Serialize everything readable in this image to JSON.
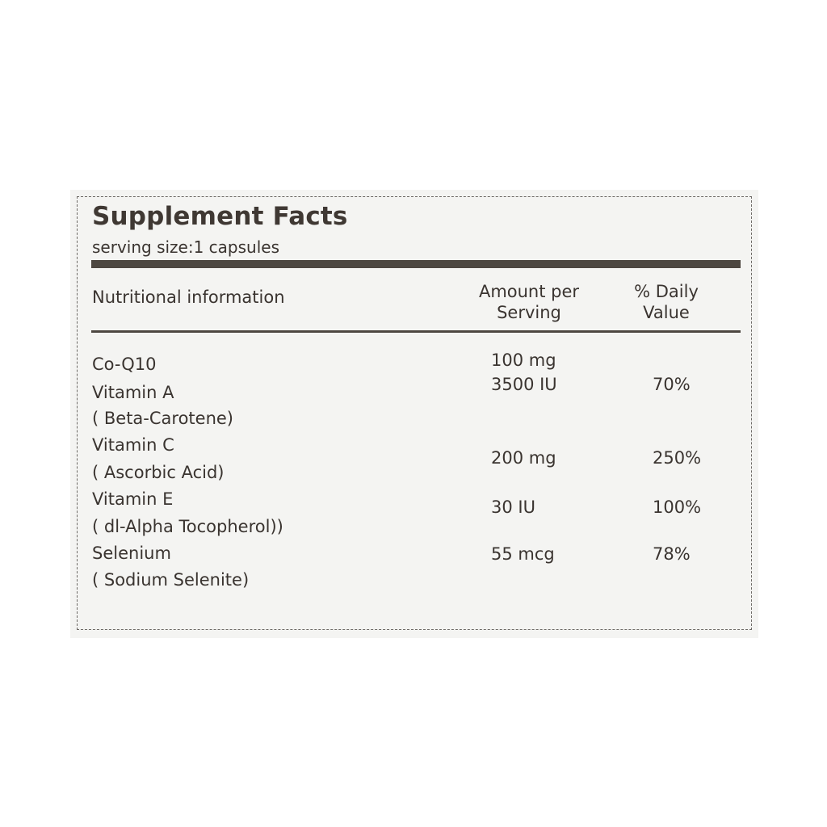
{
  "label": {
    "title": "Supplement Facts",
    "serving_size": "serving size:1 capsules",
    "headers": {
      "nutrient": "Nutritional information",
      "amount_line1": "Amount per",
      "amount_line2": "Serving",
      "dv_line1": "% Daily",
      "dv_line2": "Value"
    },
    "rows": [
      {
        "name": "Co-Q10",
        "amount": "100 mg",
        "dv": ""
      },
      {
        "name": "Vitamin A",
        "amount": "3500 IU",
        "dv": "70%"
      },
      {
        "name": "( Beta-Carotene)",
        "amount": "",
        "dv": ""
      },
      {
        "name": "Vitamin C",
        "amount": "",
        "dv": ""
      },
      {
        "name": "( Ascorbic Acid)",
        "amount": "200 mg",
        "dv": "250%"
      },
      {
        "name": "Vitamin E",
        "amount": "30 IU",
        "dv": "100%"
      },
      {
        "name": "( dl-Alpha Tocopherol))",
        "amount": "",
        "dv": ""
      },
      {
        "name": "Selenium",
        "amount": "55 mcg",
        "dv": "78%"
      },
      {
        "name": "( Sodium Selenite)",
        "amount": "",
        "dv": ""
      }
    ]
  }
}
